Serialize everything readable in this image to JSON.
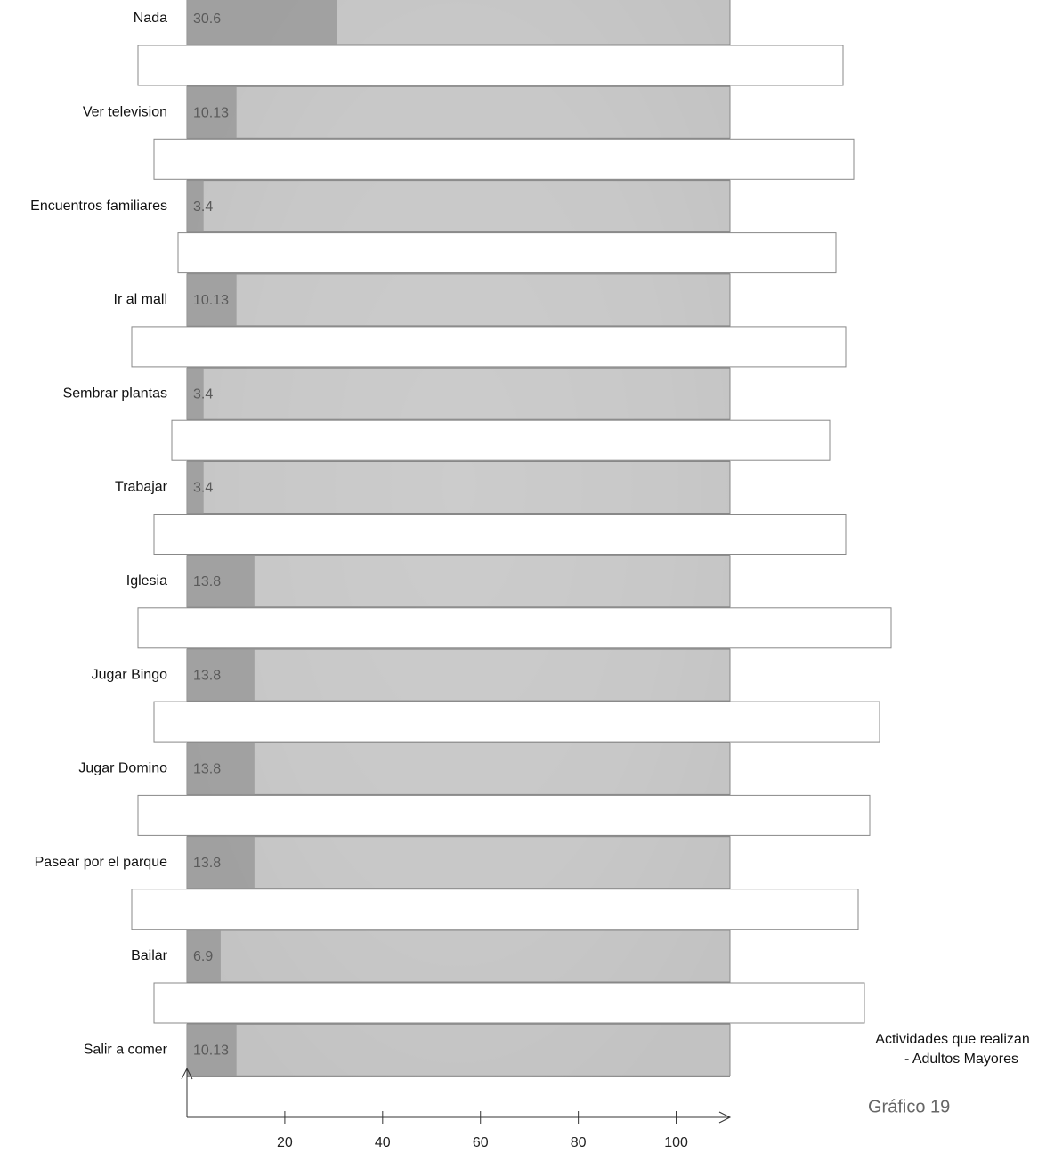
{
  "chart_data": {
    "type": "bar",
    "orientation": "horizontal",
    "title": [
      "Actividades que realizan",
      "- Adultos Mayores"
    ],
    "caption": "Gráfico 19",
    "categories": [
      "Nada",
      "Ver television",
      "Encuentros familiares",
      "Ir al mall",
      "Sembrar plantas",
      "Trabajar",
      "Iglesia",
      "Jugar Bingo",
      "Jugar Domino",
      "Pasear por el parque",
      "Bailar",
      "Salir a comer"
    ],
    "values": [
      30.6,
      10.13,
      3.4,
      10.13,
      3.4,
      3.4,
      13.8,
      13.8,
      13.8,
      13.8,
      6.9,
      10.13
    ],
    "color": "#9a9a9a",
    "xlim": [
      0,
      111
    ],
    "xticks": [
      20,
      40,
      60,
      80,
      100
    ]
  }
}
